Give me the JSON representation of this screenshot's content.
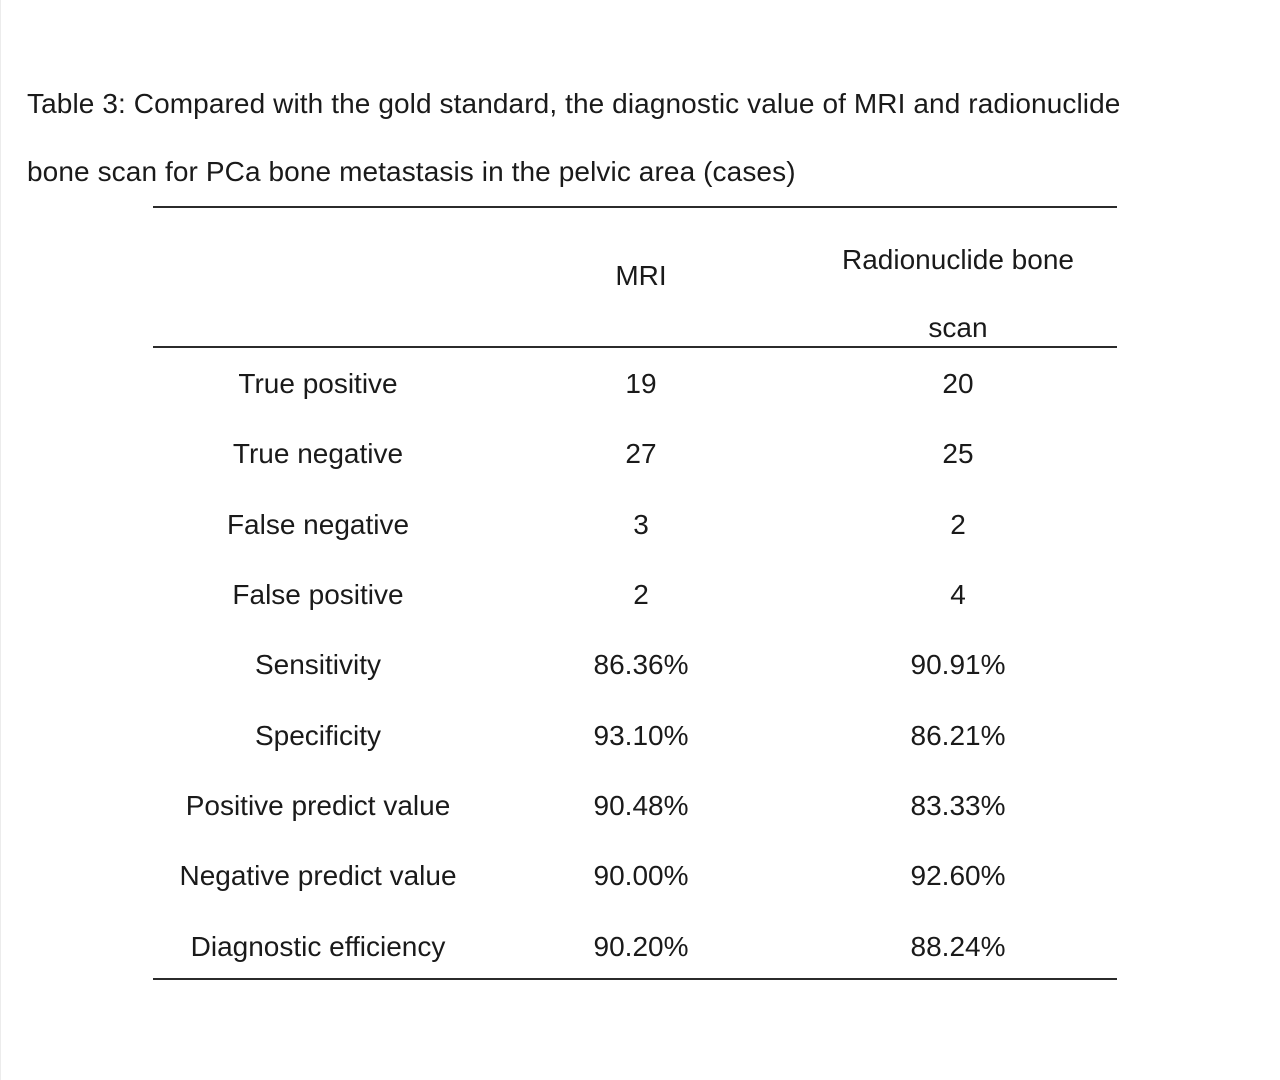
{
  "caption": {
    "line1": "Table 3: Compared with the gold standard, the diagnostic value of MRI and radionuclide",
    "line2": "bone scan for PCa bone metastasis in the pelvic area (cases)"
  },
  "table": {
    "headers": {
      "col1": "",
      "col2": "MRI",
      "col3_line1": "Radionuclide bone",
      "col3_line2": "scan"
    },
    "rows": [
      {
        "label": "True positive",
        "mri": "19",
        "scan": "20"
      },
      {
        "label": "True negative",
        "mri": "27",
        "scan": "25"
      },
      {
        "label": "False negative",
        "mri": "3",
        "scan": "2"
      },
      {
        "label": "False positive",
        "mri": "2",
        "scan": "4"
      },
      {
        "label": "Sensitivity",
        "mri": "86.36%",
        "scan": "90.91%"
      },
      {
        "label": "Specificity",
        "mri": "93.10%",
        "scan": "86.21%"
      },
      {
        "label": "Positive predict value",
        "mri": "90.48%",
        "scan": "83.33%"
      },
      {
        "label": "Negative predict value",
        "mri": "90.00%",
        "scan": "92.60%"
      },
      {
        "label": "Diagnostic efficiency",
        "mri": "90.20%",
        "scan": "88.24%"
      }
    ]
  }
}
